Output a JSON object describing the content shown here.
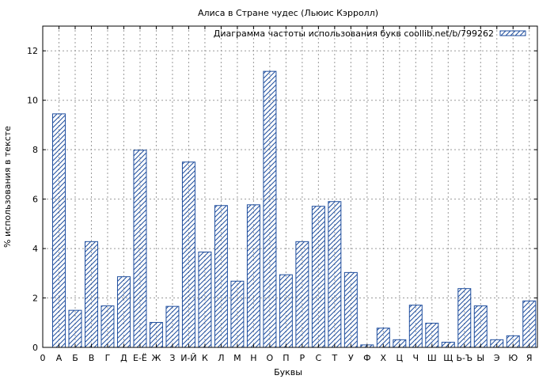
{
  "chart_data": {
    "type": "bar",
    "title": "Алиса в Стране чудес (Льюис Кэрролл)",
    "xlabel": "Буквы",
    "ylabel": "% использования в тексте",
    "legend": {
      "label": "Диаграмма частоты использования букв coollib.net/b/799262",
      "placement": "top-right"
    },
    "grid": true,
    "ylim": [
      0,
      13
    ],
    "yticks": [
      0,
      2,
      4,
      6,
      8,
      10,
      12
    ],
    "x_start_label": "0",
    "categories": [
      "А",
      "Б",
      "В",
      "Г",
      "Д",
      "Е-Ё",
      "Ж",
      "З",
      "И-Й",
      "К",
      "Л",
      "М",
      "Н",
      "О",
      "П",
      "Р",
      "С",
      "Т",
      "У",
      "Ф",
      "Х",
      "Ц",
      "Ч",
      "Ш",
      "Щ",
      "Ь-Ъ",
      "Ы",
      "Э",
      "Ю",
      "Я"
    ],
    "values": [
      9.45,
      1.5,
      4.28,
      1.68,
      2.86,
      7.98,
      1.01,
      1.66,
      7.5,
      3.86,
      5.74,
      2.68,
      5.77,
      11.17,
      2.94,
      4.28,
      5.71,
      5.9,
      3.03,
      0.1,
      0.78,
      0.31,
      1.71,
      0.98,
      0.21,
      2.38,
      1.68,
      0.31,
      0.47,
      1.88
    ],
    "colors": {
      "bar_stroke": "#1f4e9e",
      "hatch": "#1f4e9e",
      "grid": "#9a9a9a",
      "frame": "#000000"
    }
  }
}
